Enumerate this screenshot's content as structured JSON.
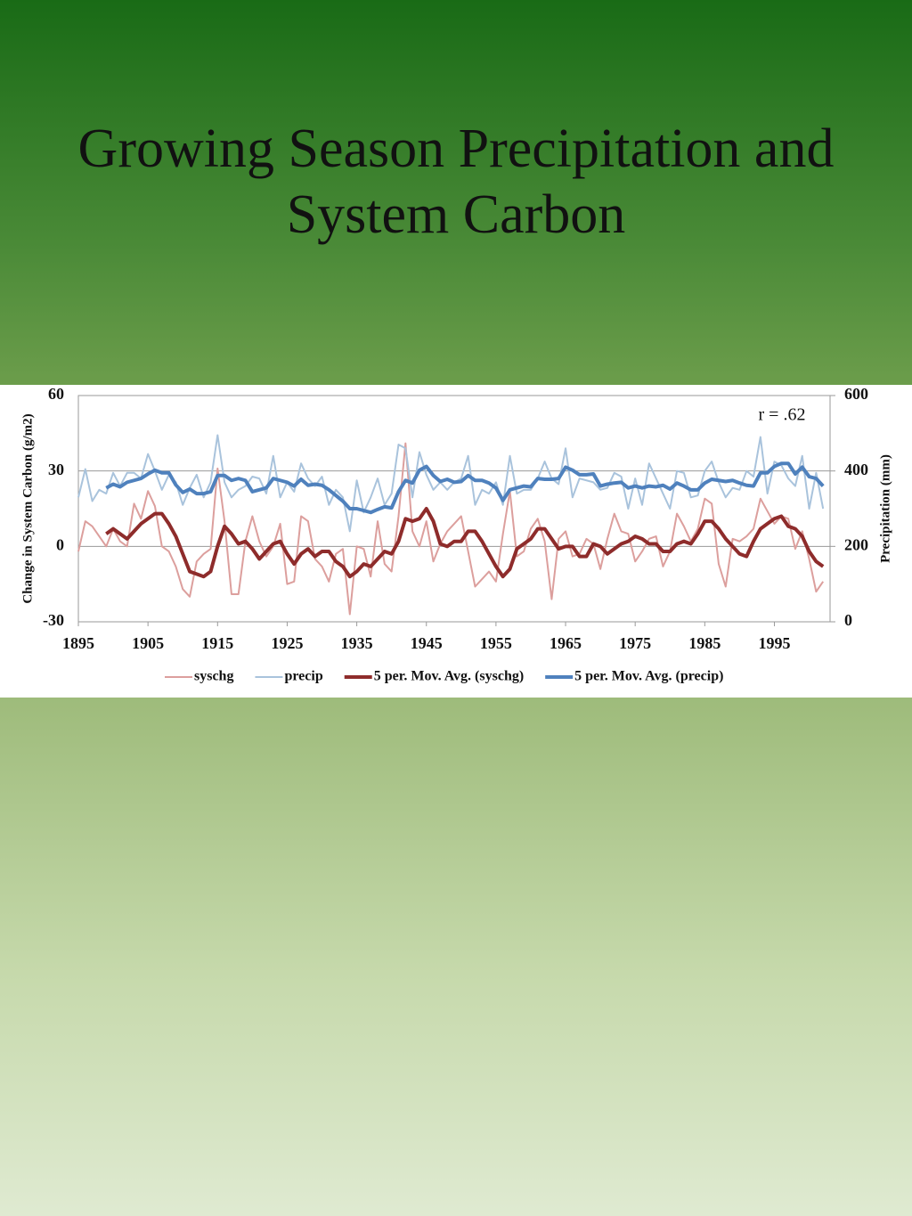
{
  "chart_data": {
    "type": "line",
    "title": "Growing Season Precipitation and System Carbon",
    "ylabel": "Change in System Carbon (g/m2)",
    "y2label": "Precipitation (mm)",
    "annotation": "r = .62",
    "legend": "bottom",
    "grid": true,
    "xlim": [
      1895,
      2003
    ],
    "xticks": [
      1895,
      1905,
      1915,
      1925,
      1935,
      1945,
      1955,
      1965,
      1975,
      1985,
      1995
    ],
    "ylim": [
      -30,
      60
    ],
    "yticks": [
      -30,
      0,
      30,
      60
    ],
    "y2lim": [
      0,
      600
    ],
    "y2ticks": [
      0,
      200,
      400,
      600
    ],
    "x": [
      1895,
      1896,
      1897,
      1898,
      1899,
      1900,
      1901,
      1902,
      1903,
      1904,
      1905,
      1906,
      1907,
      1908,
      1909,
      1910,
      1911,
      1912,
      1913,
      1914,
      1915,
      1916,
      1917,
      1918,
      1919,
      1920,
      1921,
      1922,
      1923,
      1924,
      1925,
      1926,
      1927,
      1928,
      1929,
      1930,
      1931,
      1932,
      1933,
      1934,
      1935,
      1936,
      1937,
      1938,
      1939,
      1940,
      1941,
      1942,
      1943,
      1944,
      1945,
      1946,
      1947,
      1948,
      1949,
      1950,
      1951,
      1952,
      1953,
      1954,
      1955,
      1956,
      1957,
      1958,
      1959,
      1960,
      1961,
      1962,
      1963,
      1964,
      1965,
      1966,
      1967,
      1968,
      1969,
      1970,
      1971,
      1972,
      1973,
      1974,
      1975,
      1976,
      1977,
      1978,
      1979,
      1980,
      1981,
      1982,
      1983,
      1984,
      1985,
      1986,
      1987,
      1988,
      1989,
      1990,
      1991,
      1992,
      1993,
      1994,
      1995,
      1996,
      1997,
      1998,
      1999,
      2000,
      2001,
      2002
    ],
    "series": [
      {
        "name": "syschg",
        "color": "#dc9f9d",
        "width": 2,
        "values": [
          -2,
          10,
          8,
          4,
          0,
          7,
          2,
          0,
          17,
          11,
          22,
          16,
          0,
          -2,
          -8,
          -17,
          -20,
          -6,
          -3,
          -1,
          31,
          10,
          -19,
          -19,
          2,
          12,
          2,
          -4,
          0,
          9,
          -15,
          -14,
          12,
          10,
          -5,
          -8,
          -14,
          -3,
          -1,
          -27,
          0,
          -1,
          -12,
          10,
          -7,
          -10,
          12,
          41,
          6,
          0,
          10,
          -6,
          1,
          6,
          9,
          12,
          -2,
          -16,
          -13,
          -10,
          -14,
          5,
          22,
          -4,
          -2,
          7,
          11,
          2,
          -21,
          3,
          6,
          -4,
          -3,
          3,
          1,
          -9,
          3,
          13,
          6,
          5,
          -6,
          -2,
          3,
          4,
          -8,
          -2,
          13,
          8,
          2,
          7,
          19,
          17,
          -7,
          -16,
          3,
          2,
          4,
          7,
          19,
          14,
          9,
          12,
          11,
          -1,
          6,
          -5,
          -18,
          -14
        ]
      },
      {
        "name": "precip",
        "color": "#a9c3dc",
        "width": 2,
        "axis": "y2",
        "values": [
          330,
          405,
          320,
          350,
          340,
          395,
          360,
          395,
          395,
          380,
          445,
          400,
          350,
          390,
          370,
          310,
          355,
          390,
          330,
          370,
          495,
          370,
          330,
          350,
          360,
          385,
          380,
          340,
          440,
          330,
          370,
          345,
          420,
          380,
          360,
          385,
          310,
          350,
          330,
          240,
          375,
          290,
          330,
          380,
          310,
          340,
          470,
          460,
          330,
          450,
          390,
          350,
          370,
          350,
          370,
          380,
          440,
          310,
          350,
          340,
          370,
          310,
          440,
          340,
          350,
          350,
          380,
          425,
          380,
          365,
          460,
          330,
          380,
          375,
          370,
          350,
          355,
          395,
          385,
          300,
          380,
          310,
          420,
          380,
          340,
          300,
          400,
          395,
          330,
          335,
          400,
          425,
          370,
          330,
          355,
          350,
          400,
          385,
          490,
          340,
          425,
          415,
          380,
          360,
          440,
          300,
          395,
          300
        ]
      },
      {
        "name": "5 per. Mov. Avg. (syschg)",
        "color": "#8e2c2b",
        "width": 4,
        "values": [
          null,
          null,
          null,
          null,
          5,
          7,
          5,
          3,
          6,
          9,
          11,
          13,
          13,
          9,
          4,
          -3,
          -10,
          -11,
          -12,
          -10,
          0,
          8,
          5,
          1,
          2,
          -1,
          -5,
          -2,
          1,
          2,
          -3,
          -7,
          -3,
          -1,
          -4,
          -2,
          -2,
          -6,
          -8,
          -12,
          -10,
          -7,
          -8,
          -5,
          -2,
          -3,
          2,
          11,
          10,
          11,
          15,
          10,
          1,
          0,
          2,
          2,
          6,
          6,
          2,
          -3,
          -8,
          -12,
          -9,
          -1,
          1,
          3,
          7,
          7,
          3,
          -1,
          0,
          0,
          -4,
          -4,
          1,
          0,
          -3,
          -1,
          1,
          2,
          4,
          3,
          1,
          1,
          -2,
          -2,
          1,
          2,
          1,
          5,
          10,
          10,
          7,
          3,
          0,
          -3,
          -4,
          2,
          7,
          9,
          11,
          12,
          8,
          7,
          4,
          -2,
          -6,
          -8
        ]
      },
      {
        "name": "5 per. Mov. Avg. (precip)",
        "color": "#4f81bd",
        "width": 4,
        "axis": "y2",
        "values": [
          null,
          null,
          null,
          null,
          355,
          365,
          358,
          370,
          375,
          380,
          392,
          402,
          395,
          395,
          363,
          343,
          352,
          340,
          340,
          345,
          388,
          388,
          375,
          380,
          375,
          345,
          350,
          355,
          380,
          375,
          370,
          360,
          378,
          362,
          365,
          362,
          350,
          335,
          320,
          300,
          300,
          295,
          290,
          298,
          305,
          302,
          345,
          375,
          368,
          402,
          412,
          388,
          372,
          378,
          370,
          372,
          388,
          375,
          375,
          368,
          355,
          322,
          350,
          355,
          360,
          358,
          380,
          378,
          378,
          380,
          410,
          402,
          390,
          390,
          392,
          360,
          365,
          368,
          370,
          355,
          360,
          355,
          360,
          358,
          362,
          352,
          368,
          360,
          350,
          350,
          368,
          378,
          375,
          372,
          375,
          368,
          362,
          360,
          395,
          395,
          412,
          420,
          420,
          392,
          410,
          385,
          380,
          360
        ]
      }
    ]
  }
}
